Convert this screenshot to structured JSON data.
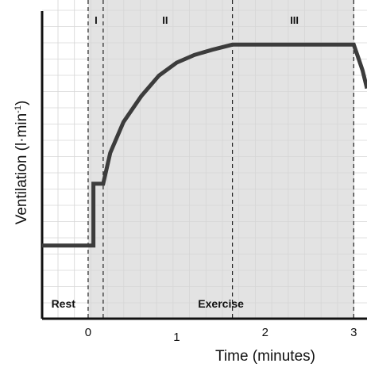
{
  "chart_data": {
    "type": "line",
    "title": "",
    "xlabel": "Time (minutes)",
    "ylabel": "Ventilation (l·min",
    "ylabel_superscript": "-1",
    "ylabel_close": ")",
    "xlim": [
      -0.52,
      3.15
    ],
    "ylim": [
      0,
      1
    ],
    "x_ticks": [
      0,
      1,
      2,
      3
    ],
    "x_tick_labels": [
      "0",
      "1",
      "2",
      "3"
    ],
    "grid": true,
    "shaded_region": [
      0,
      3
    ],
    "phase_boundaries": [
      0,
      0.17,
      1.63,
      3.0
    ],
    "phase_labels": [
      {
        "text": "I",
        "x": 0.09
      },
      {
        "text": "II",
        "x": 0.87
      },
      {
        "text": "III",
        "x": 2.33
      }
    ],
    "region_labels": [
      {
        "text": "Rest",
        "x": -0.28
      },
      {
        "text": "Exercise",
        "x": 1.5
      }
    ],
    "series": [
      {
        "x": [
          -0.52,
          0.06,
          0.06,
          0.17,
          0.25,
          0.4,
          0.6,
          0.8,
          1.0,
          1.2,
          1.4,
          1.63,
          3.0,
          3.05,
          3.1,
          3.15
        ],
        "y": [
          0.17,
          0.17,
          0.41,
          0.41,
          0.53,
          0.65,
          0.75,
          0.83,
          0.88,
          0.91,
          0.93,
          0.95,
          0.95,
          0.9,
          0.85,
          0.78
        ]
      }
    ]
  }
}
